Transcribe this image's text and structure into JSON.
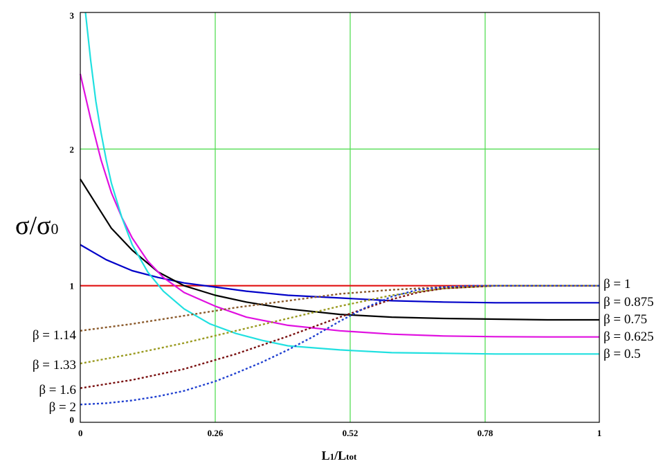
{
  "chart_data": {
    "type": "line",
    "x_axis": {
      "label_main": "L",
      "label_sub": "1",
      "label_rest": "/L",
      "label_rest_sub": "tot",
      "range": [
        0,
        1
      ],
      "ticks": [
        0,
        0.26,
        0.52,
        0.78,
        1
      ],
      "tick_labels": [
        "0",
        "0.26",
        "0.52",
        "0.78",
        "1"
      ]
    },
    "y_axis": {
      "label_main": "σ/σ",
      "label_sub": "0",
      "range": [
        0,
        3
      ],
      "ticks": [
        0,
        1,
        2,
        3
      ],
      "tick_labels": [
        "0",
        "1",
        "2",
        "3"
      ]
    },
    "grid": true,
    "grid_color": "#55dd55",
    "series": [
      {
        "name": "β = 1",
        "label_side": "right",
        "style": "solid",
        "color": "#e01010",
        "x": [
          0,
          0.25,
          0.5,
          0.75,
          1
        ],
        "y": [
          1,
          1,
          1,
          1,
          1
        ]
      },
      {
        "name": "β = 0.875",
        "label_side": "right",
        "style": "solid",
        "color": "#0000c8",
        "x": [
          0,
          0.05,
          0.1,
          0.15,
          0.2,
          0.26,
          0.32,
          0.4,
          0.5,
          0.6,
          0.7,
          0.8,
          0.9,
          1
        ],
        "y": [
          1.3,
          1.19,
          1.11,
          1.06,
          1.02,
          0.99,
          0.96,
          0.93,
          0.91,
          0.89,
          0.88,
          0.875,
          0.875,
          0.875
        ]
      },
      {
        "name": "β = 0.75",
        "label_side": "right",
        "style": "solid",
        "color": "#000000",
        "x": [
          0,
          0.03,
          0.06,
          0.1,
          0.15,
          0.2,
          0.26,
          0.32,
          0.4,
          0.5,
          0.6,
          0.7,
          0.8,
          0.9,
          1
        ],
        "y": [
          1.78,
          1.6,
          1.42,
          1.26,
          1.1,
          1.0,
          0.93,
          0.88,
          0.83,
          0.79,
          0.77,
          0.76,
          0.755,
          0.75,
          0.75
        ]
      },
      {
        "name": "β = 0.625",
        "label_side": "right",
        "style": "solid",
        "color": "#e010e0",
        "x": [
          0,
          0.02,
          0.04,
          0.06,
          0.08,
          0.1,
          0.13,
          0.16,
          0.2,
          0.26,
          0.32,
          0.4,
          0.5,
          0.6,
          0.7,
          0.8,
          0.9,
          1
        ],
        "y": [
          2.55,
          2.22,
          1.92,
          1.68,
          1.5,
          1.35,
          1.18,
          1.06,
          0.95,
          0.85,
          0.77,
          0.71,
          0.67,
          0.645,
          0.632,
          0.627,
          0.625,
          0.625
        ]
      },
      {
        "name": "β = 0.5",
        "label_side": "right",
        "style": "solid",
        "color": "#20e0e0",
        "x": [
          0.01,
          0.02,
          0.03,
          0.04,
          0.05,
          0.06,
          0.08,
          0.1,
          0.13,
          0.16,
          0.2,
          0.25,
          0.3,
          0.35,
          0.4,
          0.5,
          0.6,
          0.7,
          0.8,
          0.9,
          1
        ],
        "y": [
          3.0,
          2.65,
          2.35,
          2.12,
          1.92,
          1.75,
          1.5,
          1.3,
          1.1,
          0.96,
          0.83,
          0.72,
          0.65,
          0.6,
          0.56,
          0.53,
          0.51,
          0.505,
          0.5,
          0.5,
          0.5
        ]
      },
      {
        "name": "β = 1.14",
        "label_side": "left",
        "style": "dotted",
        "color": "#8b5a2b",
        "x": [
          0,
          0.1,
          0.2,
          0.3,
          0.4,
          0.5,
          0.6,
          0.7,
          0.8,
          0.9,
          1
        ],
        "y": [
          0.67,
          0.72,
          0.78,
          0.84,
          0.89,
          0.94,
          0.97,
          0.99,
          1.0,
          1.0,
          1.0
        ]
      },
      {
        "name": "β = 1.33",
        "label_side": "left",
        "style": "dotted",
        "color": "#9a9a20",
        "x": [
          0,
          0.1,
          0.2,
          0.3,
          0.4,
          0.5,
          0.6,
          0.7,
          0.8,
          0.9,
          1
        ],
        "y": [
          0.43,
          0.5,
          0.58,
          0.67,
          0.76,
          0.85,
          0.93,
          0.98,
          1.0,
          1.0,
          1.0
        ]
      },
      {
        "name": "β = 1.6",
        "label_side": "left",
        "style": "dotted",
        "color": "#7a1010",
        "x": [
          0,
          0.1,
          0.2,
          0.3,
          0.4,
          0.5,
          0.6,
          0.65,
          0.7,
          0.8,
          0.9,
          1
        ],
        "y": [
          0.25,
          0.31,
          0.39,
          0.5,
          0.63,
          0.77,
          0.9,
          0.95,
          0.98,
          1.0,
          1.0,
          1.0
        ]
      },
      {
        "name": "β = 2",
        "label_side": "left",
        "style": "dotted",
        "color": "#2040d0",
        "x": [
          0,
          0.05,
          0.1,
          0.15,
          0.2,
          0.26,
          0.3,
          0.35,
          0.4,
          0.45,
          0.5,
          0.55,
          0.6,
          0.65,
          0.7,
          0.75,
          0.8,
          0.9,
          1
        ],
        "y": [
          0.13,
          0.14,
          0.16,
          0.19,
          0.23,
          0.3,
          0.36,
          0.44,
          0.53,
          0.63,
          0.74,
          0.84,
          0.92,
          0.97,
          0.99,
          1.0,
          1.0,
          1.0,
          1.0
        ]
      }
    ]
  }
}
